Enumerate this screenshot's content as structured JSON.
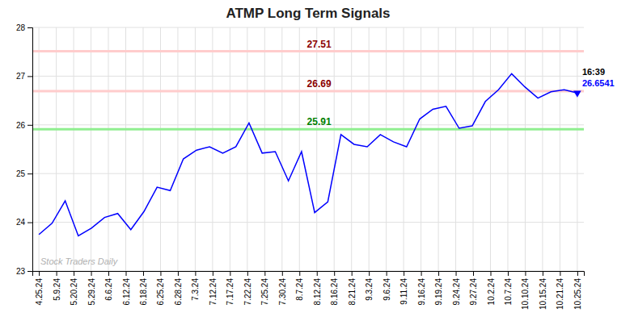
{
  "chart_data": {
    "type": "line",
    "title": "ATMP Long Term Signals",
    "x": [
      0,
      1,
      2,
      3,
      4,
      5,
      6,
      7,
      8,
      9,
      10,
      11,
      12,
      13,
      14,
      15,
      16,
      17,
      18,
      19,
      20,
      21,
      22,
      23,
      24,
      25,
      26,
      27,
      28,
      29,
      30,
      31,
      32,
      33,
      34,
      35,
      36,
      37,
      38,
      39,
      40,
      41
    ],
    "values": [
      23.75,
      23.98,
      24.44,
      23.72,
      23.88,
      24.1,
      24.18,
      23.85,
      24.22,
      24.72,
      24.65,
      25.3,
      25.48,
      25.55,
      25.42,
      25.55,
      26.04,
      25.42,
      25.45,
      24.85,
      25.45,
      24.2,
      24.42,
      25.8,
      25.6,
      25.55,
      25.8,
      25.65,
      25.55,
      26.12,
      26.32,
      26.38,
      25.93,
      25.98,
      26.48,
      26.72,
      27.05,
      26.78,
      26.55,
      26.68,
      26.72,
      26.6541
    ],
    "color": "blue",
    "xlim": [
      -0.5,
      41.5
    ],
    "xticks": [
      {
        "value": 0,
        "label": "4.25.24"
      },
      {
        "value": 1.32258064516129,
        "label": "5.9.24"
      },
      {
        "value": 2.64516129032258,
        "label": "5.20.24"
      },
      {
        "value": 3.96774193548387,
        "label": "5.29.24"
      },
      {
        "value": 5.29032258064516,
        "label": "6.6.24"
      },
      {
        "value": 6.61290322580645,
        "label": "6.12.24"
      },
      {
        "value": 7.93548387096774,
        "label": "6.18.24"
      },
      {
        "value": 9.25806451612903,
        "label": "6.25.24"
      },
      {
        "value": 10.5806451612903,
        "label": "6.28.24"
      },
      {
        "value": 11.9032258064516,
        "label": "7.3.24"
      },
      {
        "value": 13.2258064516129,
        "label": "7.12.24"
      },
      {
        "value": 14.5483870967742,
        "label": "7.17.24"
      },
      {
        "value": 15.8709677419355,
        "label": "7.22.24"
      },
      {
        "value": 17.1935483870968,
        "label": "7.25.24"
      },
      {
        "value": 18.5161290322581,
        "label": "7.30.24"
      },
      {
        "value": 19.8387096774194,
        "label": "8.7.24"
      },
      {
        "value": 21.1612903225806,
        "label": "8.12.24"
      },
      {
        "value": 22.4838709677419,
        "label": "8.16.24"
      },
      {
        "value": 23.8064516129032,
        "label": "8.21.24"
      },
      {
        "value": 25.1290322580645,
        "label": "9.3.24"
      },
      {
        "value": 26.4516129032258,
        "label": "9.6.24"
      },
      {
        "value": 27.7741935483871,
        "label": "9.11.24"
      },
      {
        "value": 29.0967741935484,
        "label": "9.16.24"
      },
      {
        "value": 30.4193548387097,
        "label": "9.19.24"
      },
      {
        "value": 31.741935483871,
        "label": "9.24.24"
      },
      {
        "value": 33.0645161290323,
        "label": "9.27.24"
      },
      {
        "value": 34.3870967741935,
        "label": "10.2.24"
      },
      {
        "value": 35.7096774193548,
        "label": "10.7.24"
      },
      {
        "value": 37.0322580645161,
        "label": "10.10.24"
      },
      {
        "value": 38.3548387096774,
        "label": "10.15.24"
      },
      {
        "value": 39.6774193548387,
        "label": "10.21.24"
      },
      {
        "value": 41,
        "label": "10.25.24"
      }
    ],
    "ylim": [
      23.0,
      28.0
    ],
    "yticks": [
      23,
      24,
      25,
      26,
      27,
      28
    ],
    "grid": true,
    "hlines": [
      {
        "value": 27.51,
        "label": "27.51",
        "color": "#ffcccc",
        "label_color": "#8b0000"
      },
      {
        "value": 26.69,
        "label": "26.69",
        "color": "#ffcccc",
        "label_color": "#8b0000"
      },
      {
        "value": 25.91,
        "label": "25.91",
        "color": "#90ee90",
        "label_color": "green"
      }
    ],
    "annotations": [
      {
        "text": "16:39",
        "color": "black"
      },
      {
        "text": "26.6541",
        "color": "blue"
      }
    ],
    "watermark": {
      "text": "Stock Traders Daily",
      "color": "#b0b0b0"
    }
  }
}
